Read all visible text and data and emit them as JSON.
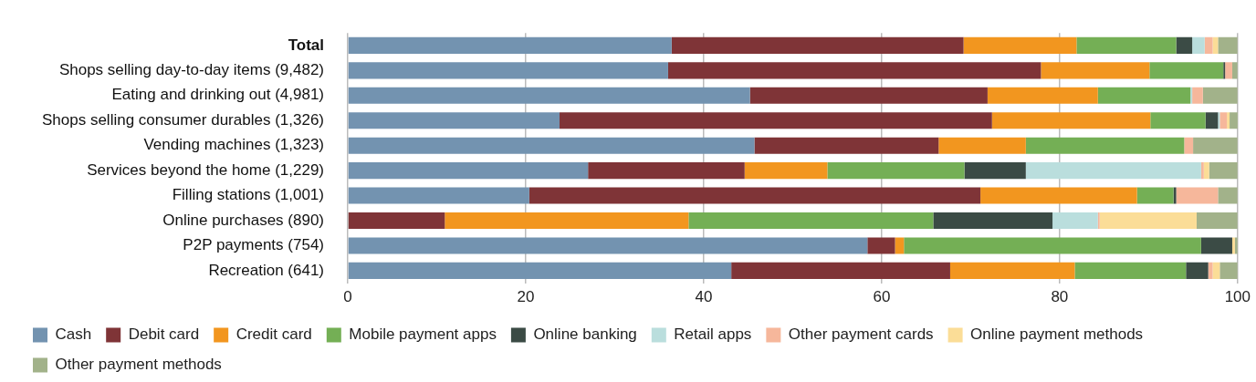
{
  "chart_data": {
    "type": "bar",
    "orientation": "horizontal",
    "stacked": true,
    "categories": [
      "Total",
      "Shops selling day-to-day items (9,482)",
      "Eating and drinking out (4,981)",
      "Shops selling consumer durables (1,326)",
      "Vending machines (1,323)",
      "Services beyond the home (1,229)",
      "Filling stations (1,001)",
      "Online purchases (890)",
      "P2P payments (754)",
      "Recreation (641)"
    ],
    "series": [
      {
        "name": "Cash",
        "color": "#7393b0",
        "values": [
          36.4,
          36.0,
          45.2,
          23.8,
          45.7,
          27.0,
          20.4,
          0,
          58.4,
          43.1
        ]
      },
      {
        "name": "Debit card",
        "color": "#7f3437",
        "values": [
          32.8,
          41.9,
          26.7,
          48.6,
          20.7,
          17.6,
          50.7,
          10.9,
          3.1,
          24.6
        ]
      },
      {
        "name": "Credit card",
        "color": "#f2961f",
        "values": [
          12.7,
          12.2,
          12.4,
          17.8,
          9.8,
          9.3,
          17.6,
          27.4,
          1.0,
          14.0
        ]
      },
      {
        "name": "Mobile payment apps",
        "color": "#74af55",
        "values": [
          11.2,
          8.3,
          10.4,
          6.2,
          17.8,
          15.4,
          4.1,
          27.5,
          33.4,
          12.5
        ]
      },
      {
        "name": "Online banking",
        "color": "#3b4b45",
        "values": [
          1.8,
          0.2,
          0,
          1.4,
          0,
          6.9,
          0.3,
          13.4,
          3.5,
          2.5
        ]
      },
      {
        "name": "Retail apps",
        "color": "#badedd",
        "values": [
          1.4,
          0,
          0.2,
          0.2,
          0,
          19.7,
          0,
          5.1,
          0,
          0
        ]
      },
      {
        "name": "Other payment cards",
        "color": "#f6b79b",
        "values": [
          0.9,
          0.8,
          1.2,
          0.8,
          1.0,
          0.3,
          4.7,
          0.2,
          0,
          0.5
        ]
      },
      {
        "name": "Online payment methods",
        "color": "#fbdd97",
        "values": [
          0.6,
          0,
          0,
          0.3,
          0,
          0.6,
          0,
          10.9,
          0.3,
          0.8
        ]
      },
      {
        "name": "Other payment methods",
        "color": "#a2b28a",
        "values": [
          2.2,
          0.6,
          3.9,
          1.0,
          5.0,
          3.2,
          2.2,
          4.6,
          0.3,
          2.0
        ]
      }
    ],
    "xlim": [
      0,
      100
    ],
    "xticks": [
      0,
      20,
      40,
      60,
      80,
      100
    ],
    "grid": "x",
    "legend": "bottom"
  }
}
